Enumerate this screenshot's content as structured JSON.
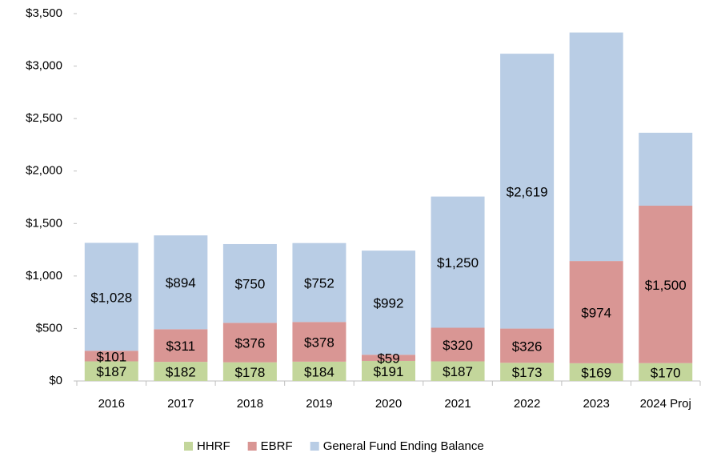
{
  "chart_data": {
    "type": "stacked_bar",
    "categories": [
      "2016",
      "2017",
      "2018",
      "2019",
      "2020",
      "2021",
      "2022",
      "2023",
      "2024 Proj"
    ],
    "series": [
      {
        "name": "HHRF",
        "color": "#c3d69b",
        "values": [
          187,
          182,
          178,
          184,
          191,
          187,
          173,
          169,
          170
        ],
        "value_labels": [
          "$187",
          "$182",
          "$178",
          "$184",
          "$191",
          "$187",
          "$173",
          "$169",
          "$170"
        ]
      },
      {
        "name": "EBRF",
        "color": "#d99694",
        "values": [
          101,
          311,
          376,
          378,
          59,
          320,
          326,
          974,
          1500
        ],
        "value_labels": [
          "$101",
          "$311",
          "$376",
          "$378",
          "$59",
          "$320",
          "$326",
          "$974",
          "$1,500"
        ]
      },
      {
        "name": "General Fund Ending Balance",
        "color": "#b9cde5",
        "values": [
          1028,
          894,
          750,
          752,
          992,
          1250,
          2619,
          2177,
          695
        ],
        "value_labels": [
          "$1,028",
          "$894",
          "$750",
          "$752",
          "$992",
          "$1,250",
          "$2,619",
          null,
          null
        ]
      }
    ],
    "ylim": [
      0,
      3500
    ],
    "yticks": [
      {
        "value": 0,
        "label": "$0"
      },
      {
        "value": 500,
        "label": "$500"
      },
      {
        "value": 1000,
        "label": "$1,000"
      },
      {
        "value": 1500,
        "label": "$1,500"
      },
      {
        "value": 2000,
        "label": "$2,000"
      },
      {
        "value": 2500,
        "label": "$2,500"
      },
      {
        "value": 3000,
        "label": "$3,000"
      },
      {
        "value": 3500,
        "label": "$3,500"
      }
    ],
    "legend": "bottom"
  }
}
